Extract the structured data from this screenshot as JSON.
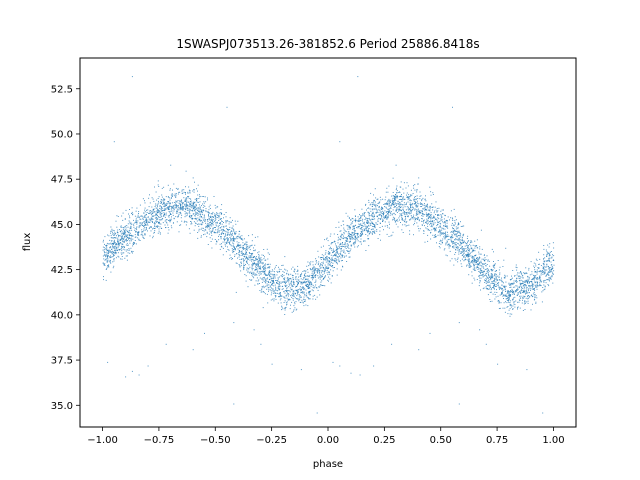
{
  "chart_data": {
    "type": "scatter",
    "title": "1SWASPJ073513.26-381852.6 Period 25886.8418s",
    "xlabel": "phase",
    "ylabel": "flux",
    "xlim": [
      -1.1,
      1.1
    ],
    "ylim": [
      33.8,
      54.2
    ],
    "x_ticks": [
      -1.0,
      -0.75,
      -0.5,
      -0.25,
      0.0,
      0.25,
      0.5,
      0.75,
      1.0
    ],
    "x_tick_labels": [
      "−1.00",
      "−0.75",
      "−0.50",
      "−0.25",
      "0.00",
      "0.25",
      "0.50",
      "0.75",
      "1.00"
    ],
    "y_ticks": [
      35.0,
      37.5,
      40.0,
      42.5,
      45.0,
      47.5,
      50.0,
      52.5
    ],
    "y_tick_labels": [
      "35.0",
      "37.5",
      "40.0",
      "42.5",
      "45.0",
      "47.5",
      "50.0",
      "52.5"
    ],
    "grid": false,
    "marker_color": "#1f77b4",
    "series": [
      {
        "phase": [
          -1.0,
          -0.9,
          -0.8,
          -0.7,
          -0.6,
          -0.5,
          -0.4,
          -0.3,
          -0.2,
          -0.1,
          0.0,
          0.1,
          0.2,
          0.3,
          0.4,
          0.5,
          0.6,
          0.7,
          0.8,
          0.9,
          1.0
        ],
        "flux": [
          43.2,
          44.3,
          45.3,
          46.0,
          46.0,
          45.0,
          43.8,
          42.4,
          41.4,
          41.6,
          43.0,
          44.4,
          45.4,
          46.1,
          45.9,
          45.0,
          43.7,
          42.3,
          41.2,
          41.6,
          43.0
        ]
      }
    ],
    "outliers": [
      {
        "x": -0.9,
        "y": 36.6
      },
      {
        "x": -0.87,
        "y": 36.9
      },
      {
        "x": -0.84,
        "y": 36.7
      },
      {
        "x": -0.8,
        "y": 37.2
      },
      {
        "x": -0.72,
        "y": 38.4
      },
      {
        "x": -0.6,
        "y": 38.1
      },
      {
        "x": -0.55,
        "y": 39.0
      },
      {
        "x": -0.42,
        "y": 39.6
      },
      {
        "x": -0.3,
        "y": 38.4
      },
      {
        "x": -0.12,
        "y": 37.0
      },
      {
        "x": 0.05,
        "y": 37.2
      },
      {
        "x": 0.1,
        "y": 36.8
      },
      {
        "x": 0.14,
        "y": 36.7
      },
      {
        "x": 0.2,
        "y": 37.2
      },
      {
        "x": 0.28,
        "y": 38.4
      },
      {
        "x": 0.4,
        "y": 38.1
      },
      {
        "x": 0.45,
        "y": 39.0
      },
      {
        "x": 0.58,
        "y": 39.6
      },
      {
        "x": 0.7,
        "y": 38.4
      },
      {
        "x": 0.88,
        "y": 37.0
      },
      {
        "x": -0.87,
        "y": 53.2
      },
      {
        "x": 0.13,
        "y": 53.2
      },
      {
        "x": -0.45,
        "y": 51.5
      },
      {
        "x": 0.55,
        "y": 51.5
      },
      {
        "x": -0.42,
        "y": 35.1
      },
      {
        "x": 0.58,
        "y": 35.1
      },
      {
        "x": -0.05,
        "y": 34.6
      },
      {
        "x": 0.95,
        "y": 34.6
      },
      {
        "x": -0.95,
        "y": 49.6
      },
      {
        "x": 0.05,
        "y": 49.6
      },
      {
        "x": -0.7,
        "y": 48.3
      },
      {
        "x": 0.3,
        "y": 48.3
      },
      {
        "x": -0.25,
        "y": 37.3
      },
      {
        "x": 0.75,
        "y": 37.3
      },
      {
        "x": -0.98,
        "y": 37.4
      },
      {
        "x": 0.02,
        "y": 37.4
      },
      {
        "x": -0.6,
        "y": 47.6
      },
      {
        "x": 0.4,
        "y": 47.6
      },
      {
        "x": -0.33,
        "y": 39.2
      },
      {
        "x": 0.67,
        "y": 39.2
      }
    ]
  }
}
